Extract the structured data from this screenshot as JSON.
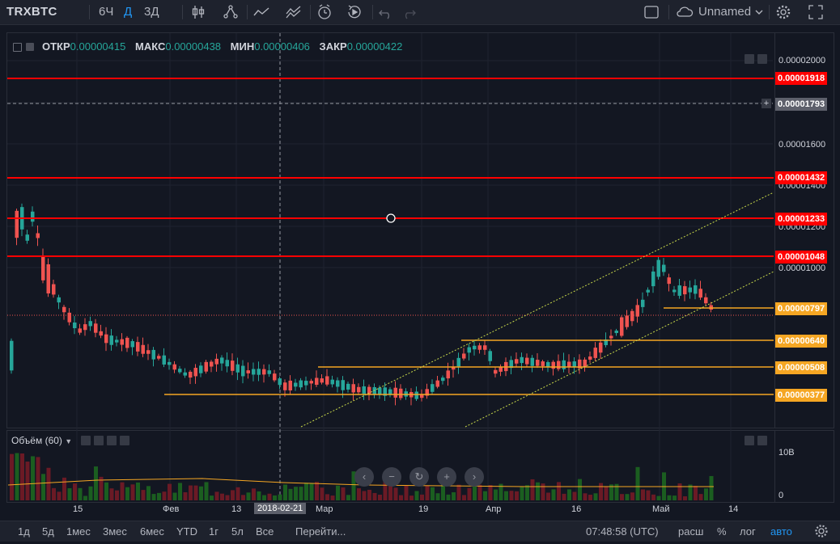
{
  "toolbar": {
    "symbol": "TRXBTC",
    "intervals": [
      "6Ч",
      "Д",
      "3Д"
    ],
    "active_interval": "Д",
    "layout_name": "Unnamed"
  },
  "legend": {
    "open_label": "ОТКР",
    "open": "0.00000415",
    "high_label": "МАКС",
    "high": "0.00000438",
    "low_label": "МИН",
    "low": "0.00000406",
    "close_label": "ЗАКР",
    "close": "0.00000422"
  },
  "price_scale": {
    "ticks": [
      "0.00002000",
      "0.00001600",
      "0.00001400",
      "0.00001200",
      "0.00001000"
    ],
    "labels": [
      {
        "text": "0.00001918",
        "kind": "red"
      },
      {
        "text": "0.00001793",
        "kind": "cursor"
      },
      {
        "text": "0.00001432",
        "kind": "red"
      },
      {
        "text": "0.00001233",
        "kind": "red"
      },
      {
        "text": "0.00001048",
        "kind": "red"
      },
      {
        "text": "0.00000797",
        "kind": "orange"
      },
      {
        "text": "0.00000640",
        "kind": "orange"
      },
      {
        "text": "0.00000508",
        "kind": "orange"
      },
      {
        "text": "0.00000377",
        "kind": "orange"
      }
    ]
  },
  "volume": {
    "header": "Объём (60)",
    "scale_top": "10B",
    "scale_zero": "0"
  },
  "time_axis": {
    "labels": [
      "15",
      "Фев",
      "13",
      "2018-02-21",
      "Мар",
      "19",
      "Апр",
      "16",
      "Май",
      "14"
    ],
    "cursor_label": "2018-02-21"
  },
  "bottom": {
    "ranges": [
      "1д",
      "5д",
      "1мес",
      "3мес",
      "6мес",
      "YTD",
      "1г",
      "5л",
      "Все"
    ],
    "goto": "Перейти...",
    "clock": "07:48:58 (UTC)",
    "scale_buttons": [
      "расш",
      "%",
      "лог",
      "авто"
    ],
    "active_scale": "авто"
  },
  "colors": {
    "up": "#26a69a",
    "down": "#ef5350",
    "red_line": "#ff0000",
    "orange_line": "#f5a623",
    "trend": "#c8d94a",
    "background": "#131722"
  }
}
